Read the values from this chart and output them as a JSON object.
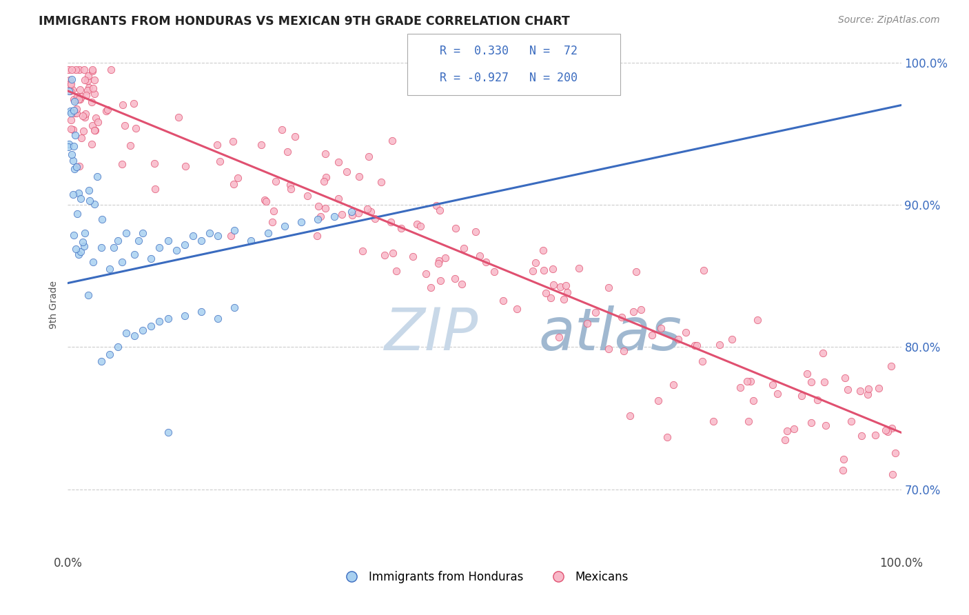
{
  "title": "IMMIGRANTS FROM HONDURAS VS MEXICAN 9TH GRADE CORRELATION CHART",
  "source_text": "Source: ZipAtlas.com",
  "ylabel": "9th Grade",
  "xlim": [
    0.0,
    1.0
  ],
  "ylim": [
    0.655,
    1.005
  ],
  "yticks": [
    0.7,
    0.8,
    0.9,
    1.0
  ],
  "ytick_labels": [
    "70.0%",
    "80.0%",
    "90.0%",
    "100.0%"
  ],
  "xticks": [
    0.0,
    1.0
  ],
  "xtick_labels": [
    "0.0%",
    "100.0%"
  ],
  "r_honduras": 0.33,
  "n_honduras": 72,
  "r_mexicans": -0.927,
  "n_mexicans": 200,
  "color_honduras": "#a8d0f0",
  "color_mexicans": "#f8b8c8",
  "line_color_honduras": "#3a6bbf",
  "line_color_mexicans": "#e05070",
  "watermark_zip": "ZIP",
  "watermark_atlas": "atlas",
  "watermark_color_zip": "#c8d8e8",
  "watermark_color_atlas": "#a0b8d0",
  "background_color": "#ffffff",
  "title_color": "#222222",
  "legend_label_1": "Immigrants from Honduras",
  "legend_label_2": "Mexicans",
  "blue_line_x0": 0.0,
  "blue_line_y0": 0.845,
  "blue_line_x1": 1.0,
  "blue_line_y1": 0.97,
  "pink_line_x0": 0.0,
  "pink_line_y0": 0.98,
  "pink_line_x1": 1.0,
  "pink_line_y1": 0.74
}
